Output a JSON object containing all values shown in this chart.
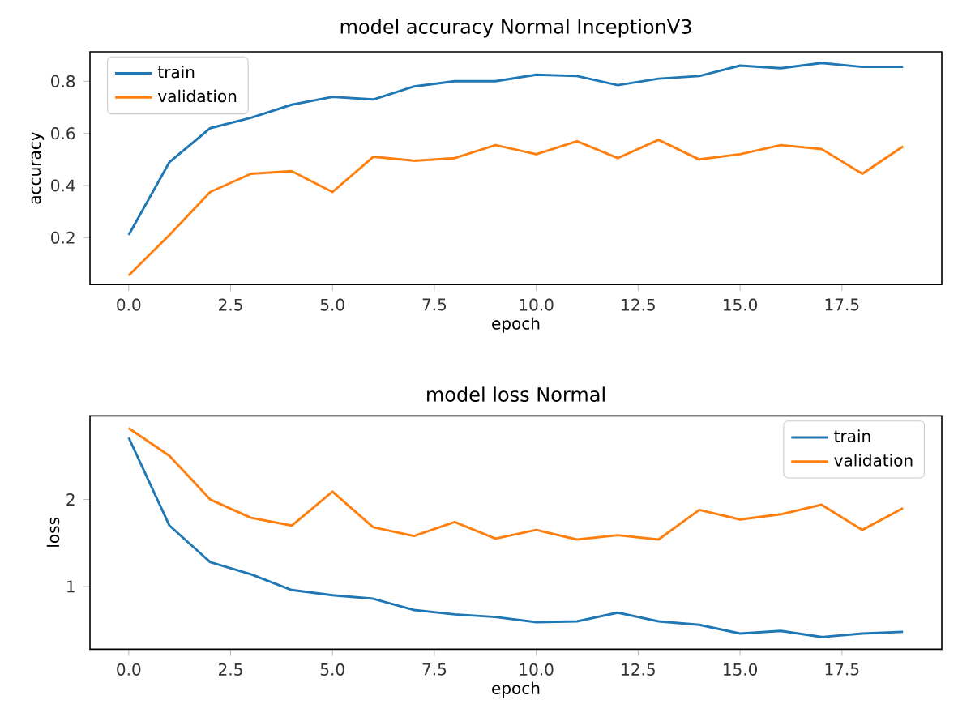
{
  "chart_data": [
    {
      "type": "line",
      "title": "model accuracy Normal InceptionV3",
      "xlabel": "epoch",
      "ylabel": "accuracy",
      "x": [
        0,
        1,
        2,
        3,
        4,
        5,
        6,
        7,
        8,
        9,
        10,
        11,
        12,
        13,
        14,
        15,
        16,
        17,
        18,
        19
      ],
      "series": [
        {
          "name": "train",
          "color": "#1f77b4",
          "values": [
            0.21,
            0.49,
            0.62,
            0.66,
            0.71,
            0.74,
            0.73,
            0.78,
            0.8,
            0.8,
            0.825,
            0.82,
            0.785,
            0.81,
            0.82,
            0.86,
            0.85,
            0.87,
            0.855,
            0.855
          ]
        },
        {
          "name": "validation",
          "color": "#ff7f0e",
          "values": [
            0.055,
            0.21,
            0.375,
            0.445,
            0.455,
            0.375,
            0.51,
            0.495,
            0.505,
            0.555,
            0.52,
            0.57,
            0.505,
            0.575,
            0.5,
            0.52,
            0.555,
            0.54,
            0.445,
            0.55
          ]
        }
      ],
      "xlim": [
        -0.95,
        19.95
      ],
      "ylim": [
        0.02,
        0.913
      ],
      "xticks": [
        {
          "value": 0,
          "label": "0.0"
        },
        {
          "value": 2.5,
          "label": "2.5"
        },
        {
          "value": 5,
          "label": "5.0"
        },
        {
          "value": 7.5,
          "label": "7.5"
        },
        {
          "value": 10,
          "label": "10.0"
        },
        {
          "value": 12.5,
          "label": "12.5"
        },
        {
          "value": 15,
          "label": "15.0"
        },
        {
          "value": 17.5,
          "label": "17.5"
        }
      ],
      "yticks": [
        0.2,
        0.4,
        0.6,
        0.8
      ],
      "legend": "top left",
      "grid": false
    },
    {
      "type": "line",
      "title": "model loss Normal",
      "xlabel": "epoch",
      "ylabel": "loss",
      "x": [
        0,
        1,
        2,
        3,
        4,
        5,
        6,
        7,
        8,
        9,
        10,
        11,
        12,
        13,
        14,
        15,
        16,
        17,
        18,
        19
      ],
      "series": [
        {
          "name": "train",
          "color": "#1f77b4",
          "values": [
            2.71,
            1.7,
            1.28,
            1.14,
            0.96,
            0.9,
            0.86,
            0.73,
            0.68,
            0.65,
            0.59,
            0.6,
            0.7,
            0.6,
            0.56,
            0.46,
            0.49,
            0.42,
            0.46,
            0.48
          ]
        },
        {
          "name": "validation",
          "color": "#ff7f0e",
          "values": [
            2.82,
            2.5,
            2.0,
            1.79,
            1.7,
            2.09,
            1.68,
            1.58,
            1.74,
            1.55,
            1.65,
            1.54,
            1.59,
            1.54,
            1.88,
            1.77,
            1.83,
            1.94,
            1.65,
            1.9
          ]
        }
      ],
      "xlim": [
        -0.95,
        19.95
      ],
      "ylim": [
        0.28,
        2.96
      ],
      "xticks": [
        {
          "value": 0,
          "label": "0.0"
        },
        {
          "value": 2.5,
          "label": "2.5"
        },
        {
          "value": 5,
          "label": "5.0"
        },
        {
          "value": 7.5,
          "label": "7.5"
        },
        {
          "value": 10,
          "label": "10.0"
        },
        {
          "value": 12.5,
          "label": "12.5"
        },
        {
          "value": 15,
          "label": "15.0"
        },
        {
          "value": 17.5,
          "label": "17.5"
        }
      ],
      "yticks": [
        1,
        2
      ],
      "legend": "top right",
      "grid": false
    }
  ]
}
